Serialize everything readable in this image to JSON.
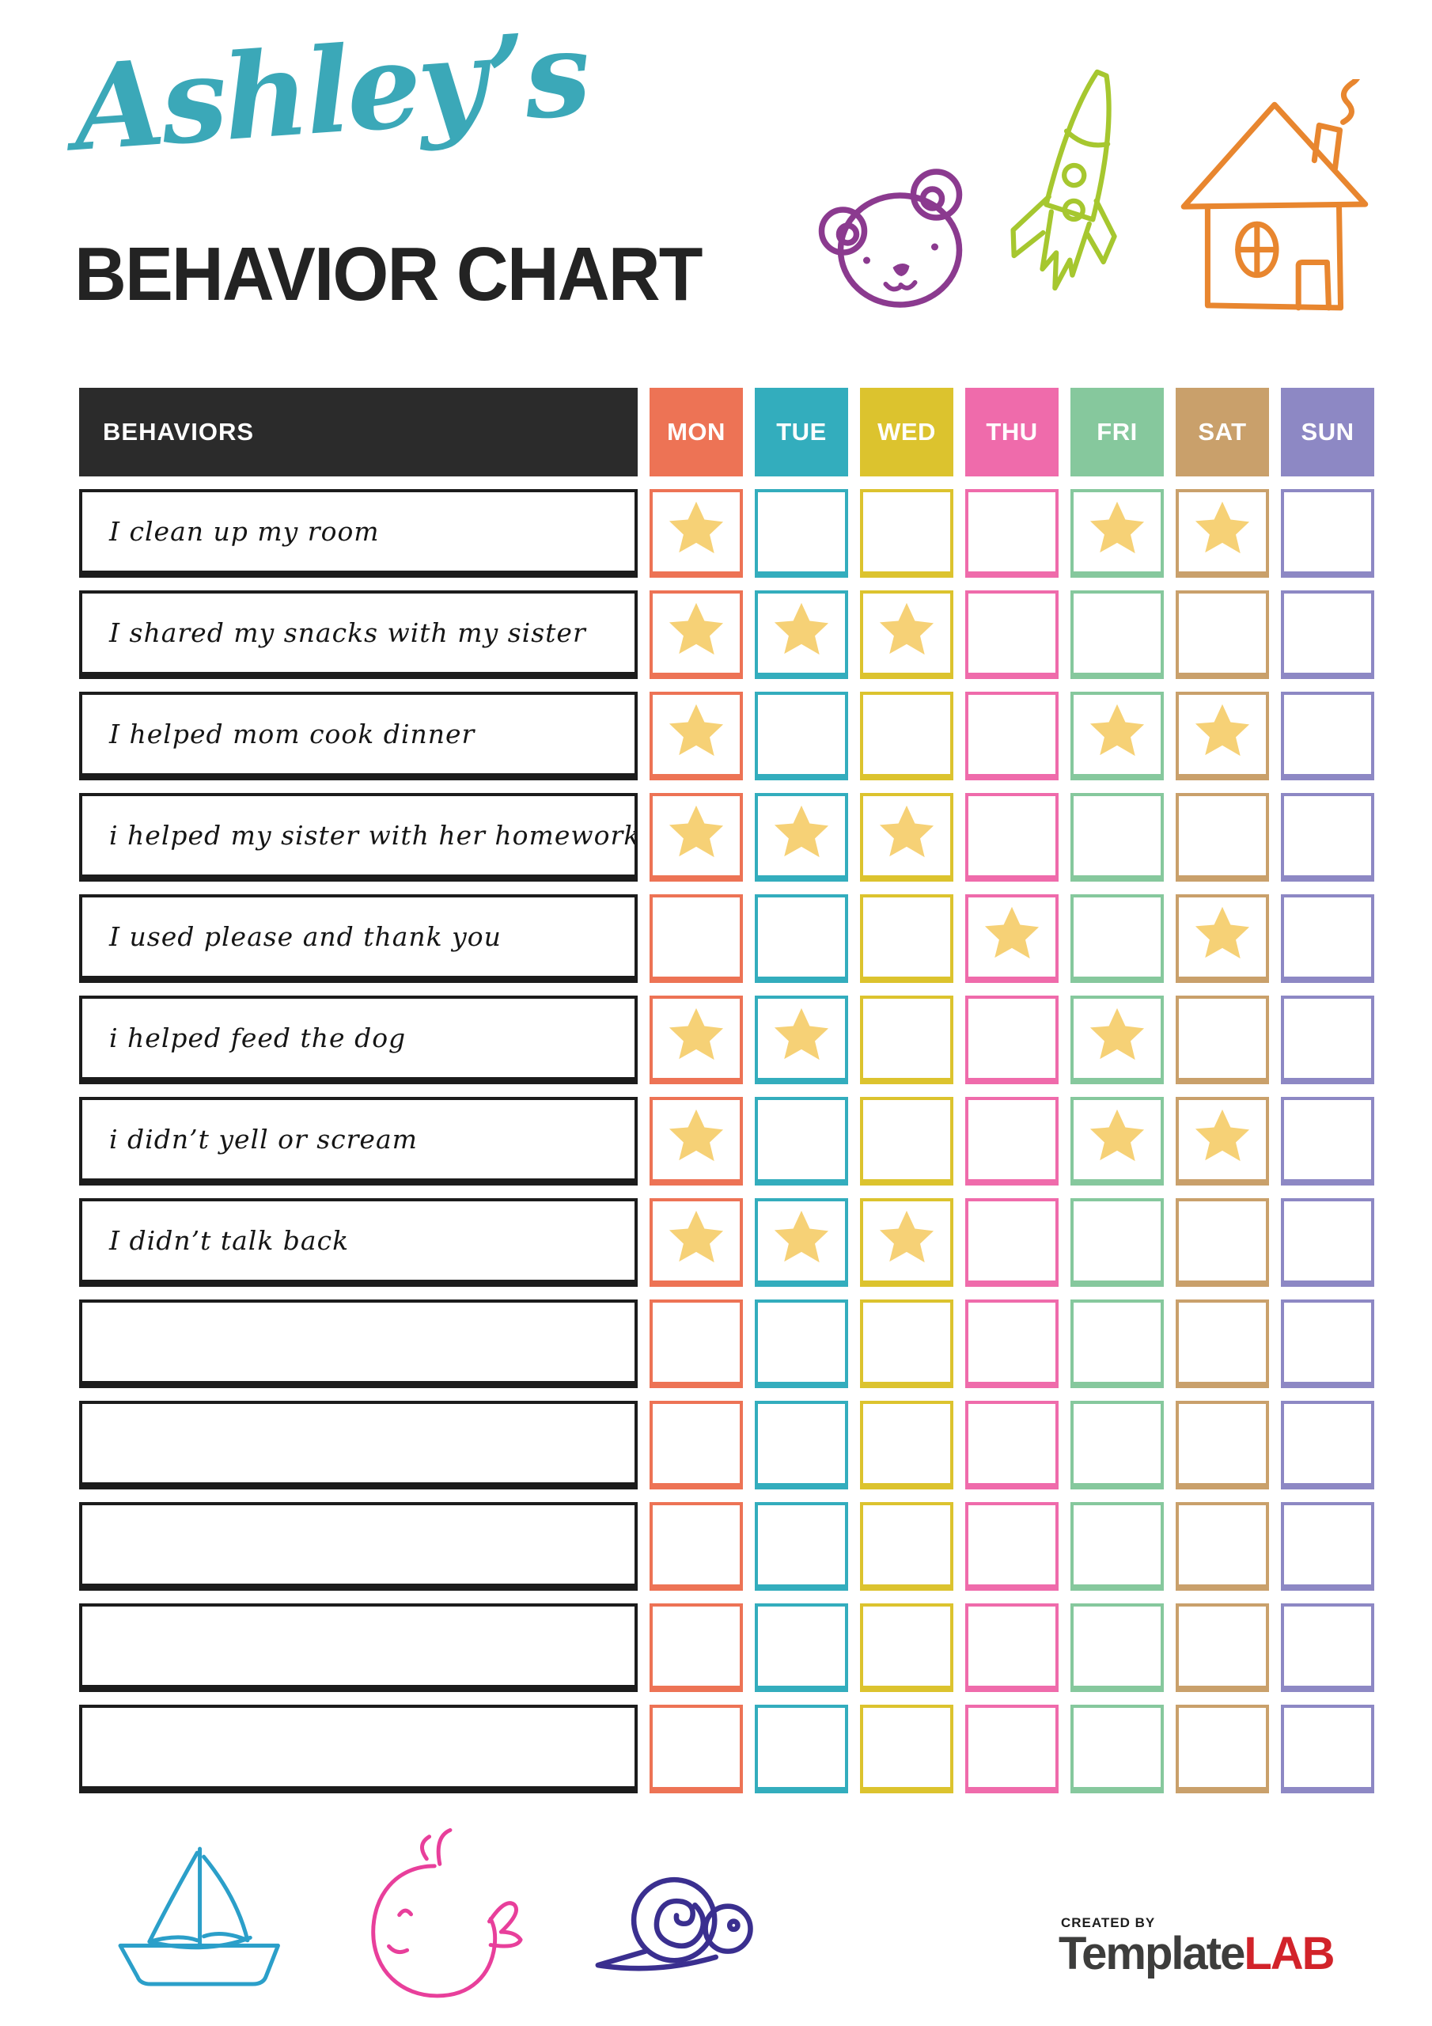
{
  "title": {
    "name": "Ashley’s",
    "subtitle": "BEHAVIOR CHART"
  },
  "colors": {
    "accent_teal": "#3BA8B8",
    "ink": "#232323",
    "star": "#F6D176",
    "behaviors_bg": "#2b2b2b",
    "label_border": "#1c1c1c",
    "logo_gray": "#3d3d3c",
    "logo_red": "#d2232a",
    "doodles": {
      "bear": "#8B3A8F",
      "rocket": "#A6C72F",
      "house": "#E8862F",
      "boat": "#2B9FC9",
      "whale": "#E83F9B",
      "snail": "#3A2F8F"
    }
  },
  "icons": {
    "top_doodles": [
      "bear-doodle-icon",
      "rocket-doodle-icon",
      "house-doodle-icon"
    ],
    "bottom_doodles": [
      "sailboat-doodle-icon",
      "whale-doodle-icon",
      "snail-doodle-icon"
    ],
    "star_marker": "star-icon"
  },
  "table": {
    "header_label": "BEHAVIORS",
    "days": [
      {
        "label": "MON",
        "color": "#ED7355"
      },
      {
        "label": "TUE",
        "color": "#33ADBD"
      },
      {
        "label": "WED",
        "color": "#DCC32E"
      },
      {
        "label": "THU",
        "color": "#EF6BAB"
      },
      {
        "label": "FRI",
        "color": "#86C89D"
      },
      {
        "label": "SAT",
        "color": "#C9A06B"
      },
      {
        "label": "SUN",
        "color": "#8D88C4"
      }
    ],
    "rows": [
      {
        "label": "I clean up my room",
        "stars": [
          0,
          4,
          5
        ]
      },
      {
        "label": "I shared my snacks with my sister",
        "stars": [
          0,
          1,
          2
        ]
      },
      {
        "label": "I helped mom cook dinner",
        "stars": [
          0,
          4,
          5
        ]
      },
      {
        "label": "i helped my sister with her homework",
        "stars": [
          0,
          1,
          2
        ]
      },
      {
        "label": "I used please and thank you",
        "stars": [
          3,
          5
        ]
      },
      {
        "label": "i helped feed the dog",
        "stars": [
          0,
          1,
          4
        ]
      },
      {
        "label": "i didn’t yell or scream",
        "stars": [
          0,
          4,
          5
        ]
      },
      {
        "label": "I didn’t talk back",
        "stars": [
          0,
          1,
          2
        ]
      },
      {
        "label": "",
        "stars": []
      },
      {
        "label": "",
        "stars": []
      },
      {
        "label": "",
        "stars": []
      },
      {
        "label": "",
        "stars": []
      },
      {
        "label": "",
        "stars": []
      }
    ]
  },
  "footer": {
    "created_by": "CREATED BY",
    "brand_part1": "Template",
    "brand_part2": "LAB"
  }
}
